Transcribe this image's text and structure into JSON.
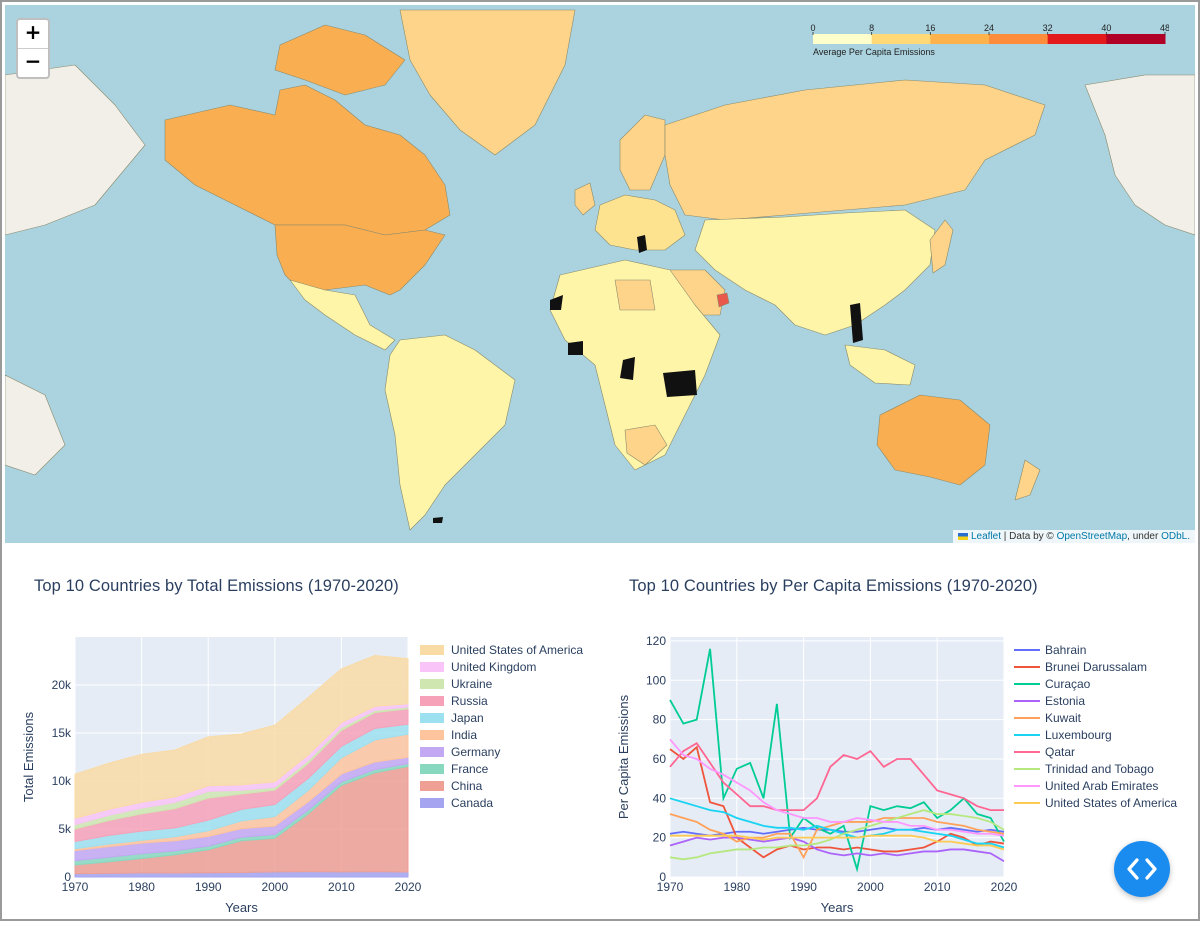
{
  "map": {
    "zoom_in": "+",
    "zoom_out": "−",
    "legend": {
      "ticks": [
        "0",
        "8",
        "16",
        "24",
        "32",
        "40",
        "48"
      ],
      "caption": "Average Per Capita Emissions",
      "colors": [
        "#ffffcc",
        "#fed976",
        "#feb24c",
        "#fd8d3c",
        "#e31a1c",
        "#b10026"
      ]
    },
    "attribution": {
      "flag": "▐",
      "leaflet": "Leaflet",
      "mid": " | Data by © ",
      "osm": "OpenStreetMap",
      "under": ", under ",
      "odbl": "ODbL."
    }
  },
  "charts": {
    "total": {
      "title": "Top 10 Countries by Total Emissions (1970-2020)"
    },
    "percap": {
      "title": "Top 10 Countries by Per Capita Emissions (1970-2020)"
    }
  },
  "chart_data": [
    {
      "type": "area",
      "title": "Top 10 Countries by Total Emissions (1970-2020)",
      "xlabel": "Years",
      "ylabel": "Total Emissions",
      "xlim": [
        1970,
        2020
      ],
      "ylim": [
        0,
        25000
      ],
      "xticks": [
        "1970",
        "1980",
        "1990",
        "2000",
        "2010",
        "2020"
      ],
      "yticks": [
        "0",
        "5k",
        "10k",
        "15k",
        "20k"
      ],
      "grid": true,
      "legend_position": "right",
      "x": [
        1970,
        1975,
        1980,
        1985,
        1990,
        1995,
        2000,
        2005,
        2010,
        2015,
        2020
      ],
      "series": [
        {
          "name": "Canada",
          "color": "#a4a4f0",
          "values": [
            350,
            380,
            430,
            420,
            440,
            470,
            530,
            560,
            540,
            550,
            520
          ]
        },
        {
          "name": "China",
          "color": "#ef9f94",
          "values": [
            900,
            1200,
            1500,
            1900,
            2400,
            3300,
            3500,
            6000,
            9000,
            10300,
            11000
          ]
        },
        {
          "name": "France",
          "color": "#88d8bf",
          "values": [
            450,
            480,
            500,
            400,
            380,
            370,
            390,
            400,
            360,
            330,
            300
          ]
        },
        {
          "name": "Germany",
          "color": "#c3a8f3",
          "values": [
            1050,
            1100,
            1100,
            1050,
            1000,
            900,
            880,
            850,
            820,
            790,
            650
          ]
        },
        {
          "name": "India",
          "color": "#fdc49d",
          "values": [
            200,
            260,
            300,
            420,
            600,
            800,
            1000,
            1200,
            1700,
            2300,
            2400
          ]
        },
        {
          "name": "Japan",
          "color": "#9de0f0",
          "values": [
            750,
            900,
            950,
            930,
            1100,
            1200,
            1250,
            1250,
            1200,
            1200,
            1050
          ]
        },
        {
          "name": "Russia",
          "color": "#f7a1b8",
          "values": [
            1300,
            1550,
            1800,
            2000,
            2300,
            1600,
            1500,
            1550,
            1650,
            1650,
            1600
          ]
        },
        {
          "name": "Ukraine",
          "color": "#cfe6b0",
          "values": [
            450,
            550,
            600,
            650,
            700,
            400,
            300,
            330,
            310,
            230,
            190
          ]
        },
        {
          "name": "United Kingdom",
          "color": "#f9c4f7",
          "values": [
            650,
            620,
            600,
            560,
            580,
            560,
            560,
            560,
            500,
            420,
            330
          ]
        },
        {
          "name": "United States of America",
          "color": "#f9dba6",
          "values": [
            4600,
            4800,
            5000,
            4900,
            5100,
            5300,
            5900,
            6000,
            5600,
            5300,
            4700
          ]
        }
      ]
    },
    {
      "type": "line",
      "title": "Top 10 Countries by Per Capita Emissions (1970-2020)",
      "xlabel": "Years",
      "ylabel": "Per Capita Emissions",
      "xlim": [
        1970,
        2020
      ],
      "ylim": [
        0,
        122
      ],
      "xticks": [
        "1970",
        "1980",
        "1990",
        "2000",
        "2010",
        "2020"
      ],
      "yticks": [
        "0",
        "20",
        "40",
        "60",
        "80",
        "100",
        "120"
      ],
      "grid": true,
      "legend_position": "right",
      "x": [
        1970,
        1972,
        1974,
        1976,
        1978,
        1980,
        1982,
        1984,
        1986,
        1988,
        1990,
        1992,
        1994,
        1996,
        1998,
        2000,
        2002,
        2004,
        2006,
        2008,
        2010,
        2012,
        2014,
        2016,
        2018,
        2020
      ],
      "series": [
        {
          "name": "Bahrain",
          "color": "#636efa",
          "values": [
            22,
            23,
            22,
            21,
            22,
            23,
            23,
            22,
            23,
            24,
            25,
            24,
            24,
            23,
            23,
            24,
            25,
            24,
            24,
            25,
            24,
            25,
            24,
            23,
            24,
            23
          ]
        },
        {
          "name": "Brunei Darussalam",
          "color": "#ef553b",
          "values": [
            65,
            60,
            66,
            38,
            36,
            20,
            15,
            10,
            14,
            16,
            14,
            15,
            15,
            14,
            15,
            14,
            13,
            13,
            14,
            15,
            18,
            22,
            20,
            16,
            18,
            17
          ]
        },
        {
          "name": "Curaçao",
          "color": "#00cc96",
          "values": [
            90,
            78,
            80,
            116,
            40,
            55,
            58,
            40,
            88,
            20,
            30,
            25,
            22,
            26,
            4,
            36,
            34,
            36,
            35,
            38,
            30,
            34,
            40,
            32,
            30,
            18
          ]
        },
        {
          "name": "Estonia",
          "color": "#ab63fa",
          "values": [
            16,
            18,
            20,
            19,
            20,
            20,
            19,
            18,
            19,
            20,
            18,
            14,
            12,
            11,
            12,
            11,
            12,
            11,
            12,
            13,
            13,
            14,
            14,
            13,
            12,
            8
          ]
        },
        {
          "name": "Kuwait",
          "color": "#ffa15a",
          "values": [
            32,
            30,
            28,
            24,
            22,
            18,
            20,
            20,
            22,
            22,
            10,
            24,
            26,
            28,
            28,
            28,
            30,
            30,
            30,
            30,
            28,
            27,
            26,
            24,
            23,
            22
          ]
        },
        {
          "name": "Luxembourg",
          "color": "#19d3f3",
          "values": [
            40,
            38,
            36,
            34,
            33,
            30,
            28,
            26,
            25,
            25,
            24,
            26,
            24,
            22,
            20,
            21,
            22,
            24,
            24,
            23,
            22,
            21,
            19,
            17,
            17,
            15
          ]
        },
        {
          "name": "Qatar",
          "color": "#ff6692",
          "values": [
            56,
            64,
            68,
            58,
            48,
            42,
            36,
            36,
            34,
            34,
            34,
            40,
            56,
            62,
            60,
            64,
            56,
            60,
            60,
            52,
            44,
            42,
            40,
            36,
            34,
            34
          ]
        },
        {
          "name": "Trinidad and Tobago",
          "color": "#b6e880",
          "values": [
            10,
            9,
            10,
            12,
            13,
            14,
            14,
            15,
            15,
            16,
            16,
            17,
            19,
            22,
            24,
            26,
            28,
            30,
            32,
            34,
            32,
            32,
            31,
            30,
            28,
            24
          ]
        },
        {
          "name": "United Arab Emirates",
          "color": "#ff97ff",
          "values": [
            70,
            62,
            60,
            55,
            52,
            48,
            44,
            38,
            34,
            32,
            30,
            30,
            28,
            28,
            30,
            29,
            28,
            28,
            26,
            26,
            24,
            24,
            23,
            22,
            22,
            21
          ]
        },
        {
          "name": "United States of America",
          "color": "#fecb52",
          "values": [
            21,
            21,
            21,
            21,
            21,
            21,
            20,
            19,
            20,
            20,
            20,
            20,
            20,
            20,
            20,
            21,
            21,
            21,
            21,
            20,
            18,
            18,
            17,
            16,
            16,
            14
          ]
        }
      ]
    }
  ]
}
